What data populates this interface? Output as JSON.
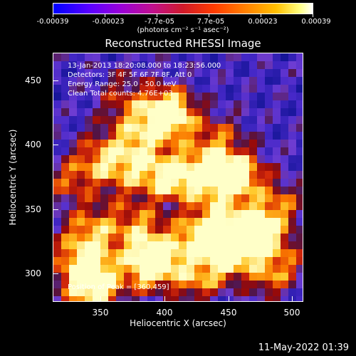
{
  "colorbar": {
    "ticks": [
      "-0.00039",
      "-0.00023",
      "-7.7e-05",
      "7.7e-05",
      "0.00023",
      "0.00039"
    ],
    "units": "(photons cm⁻² s⁻¹ asec⁻²)"
  },
  "title": "Reconstructed RHESSI Image",
  "annotations": {
    "time": "13-Jan-2013 18:20:08.000 to 18:23:56.000",
    "detectors": "Detectors: 3F 4F 5F 6F 7F 8F, Att 0",
    "energy": "Energy Range: 25.0 - 50.0 keV",
    "method": "Clean    Total counts: 4.76E+03",
    "peak": "Position of Peak = [360,459]"
  },
  "axes": {
    "xlabel": "Heliocentric X (arcsec)",
    "ylabel": "Heliocentric Y (arcsec)",
    "xticks": [
      "350",
      "400",
      "450",
      "500"
    ],
    "yticks": [
      "450",
      "400",
      "350",
      "300"
    ]
  },
  "timestamp": "11-May-2022 01:39",
  "colors": {
    "background": "#000000",
    "low": "#0000ff",
    "mid": "#d01a2a",
    "high": "#ffffff"
  }
}
